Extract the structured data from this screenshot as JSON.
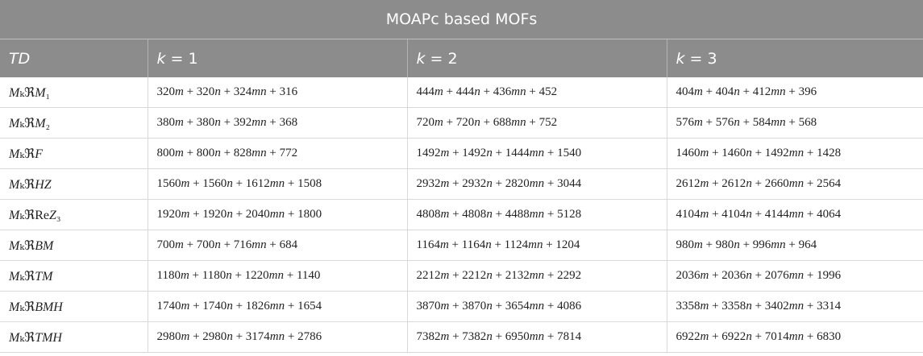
{
  "table": {
    "caption": "MOAPc based MOFs",
    "headers": [
      "TD",
      "k = 1",
      "k = 2",
      "k = 3"
    ],
    "rows": [
      {
        "td": "MₖℜM₁",
        "k1": "320m + 320n + 324mn + 316",
        "k2": "444m + 444n + 436mn + 452",
        "k3": "404m + 404n + 412mn + 396"
      },
      {
        "td": "MₖℜM₂",
        "k1": "380m + 380n + 392mn + 368",
        "k2": "720m + 720n + 688mn + 752",
        "k3": "576m + 576n + 584mn + 568"
      },
      {
        "td": "MₖℜF",
        "k1": "800m + 800n + 828mn + 772",
        "k2": "1492m + 1492n + 1444mn + 1540",
        "k3": "1460m + 1460n + 1492mn + 1428"
      },
      {
        "td": "MₖℜHZ",
        "k1": "1560m + 1560n + 1612mn + 1508",
        "k2": "2932m + 2932n + 2820mn + 3044",
        "k3": "2612m + 2612n + 2660mn + 2564"
      },
      {
        "td": "MₖℜReZ₃",
        "k1": "1920m + 1920n + 2040mn + 1800",
        "k2": "4808m + 4808n + 4488mn + 5128",
        "k3": "4104m + 4104n + 4144mn + 4064"
      },
      {
        "td": "MₖℜBM",
        "k1": "700m + 700n + 716mn + 684",
        "k2": "1164m + 1164n + 1124mn + 1204",
        "k3": "980m + 980n + 996mn + 964"
      },
      {
        "td": "MₖℜTM",
        "k1": "1180m + 1180n + 1220mn + 1140",
        "k2": "2212m + 2212n + 2132mn + 2292",
        "k3": "2036m + 2036n + 2076mn + 1996"
      },
      {
        "td": "MₖℜBMH",
        "k1": "1740m + 1740n + 1826mn + 1654",
        "k2": "3870m + 3870n + 3654mn + 4086",
        "k3": "3358m + 3358n + 3402mn + 3314"
      },
      {
        "td": "MₖℜTMH",
        "k1": "2980m + 2980n + 3174mn + 2786",
        "k2": "7382m + 7382n + 6950mn + 7814",
        "k3": "6922m + 6922n + 7014mn + 6830"
      }
    ]
  }
}
